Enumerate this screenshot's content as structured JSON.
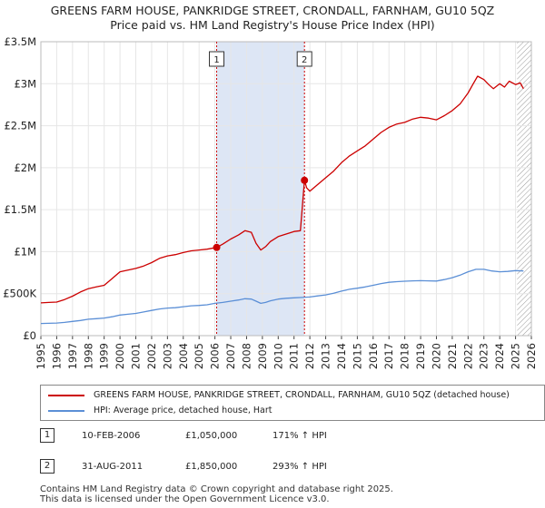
{
  "title": "GREENS FARM HOUSE, PANKRIDGE STREET, CRONDALL, FARNHAM, GU10 5QZ",
  "subtitle": "Price paid vs. HM Land Registry's House Price Index (HPI)",
  "colors": {
    "property": "#cc0000",
    "hpi": "#5b8fd6",
    "shade": "#dde6f5",
    "grid": "#e6e6e6"
  },
  "chart_data": {
    "type": "line",
    "title": "GREENS FARM HOUSE, PANKRIDGE STREET, CRONDALL, FARNHAM, GU10 5QZ",
    "subtitle": "Price paid vs. HM Land Registry's House Price Index (HPI)",
    "xlim": [
      1995,
      2026
    ],
    "ylim": [
      0,
      3500000
    ],
    "yticks": [
      0,
      500000,
      1000000,
      1500000,
      2000000,
      2500000,
      3000000,
      3500000
    ],
    "ytick_labels": [
      "£0",
      "£500K",
      "£1M",
      "£1.5M",
      "£2M",
      "£2.5M",
      "£3M",
      "£3.5M"
    ],
    "xticks": [
      "1995",
      "1996",
      "1997",
      "1998",
      "1999",
      "2000",
      "2001",
      "2002",
      "2003",
      "2004",
      "2005",
      "2006",
      "2007",
      "2008",
      "2009",
      "2010",
      "2011",
      "2012",
      "2013",
      "2014",
      "2015",
      "2016",
      "2017",
      "2018",
      "2019",
      "2020",
      "2021",
      "2022",
      "2023",
      "2024",
      "2025",
      "2026"
    ],
    "grid": true,
    "shaded_region": [
      2006.11,
      2011.66
    ],
    "hatched_after": 2025.1,
    "series": [
      {
        "name": "GREENS FARM HOUSE, PANKRIDGE STREET, CRONDALL, FARNHAM, GU10 5QZ (detached house)",
        "x": [
          1995,
          1995.5,
          1996,
          1996.5,
          1997,
          1997.5,
          1998,
          1998.5,
          1999,
          1999.5,
          2000,
          2000.5,
          2001,
          2001.5,
          2002,
          2002.5,
          2003,
          2003.5,
          2004,
          2004.5,
          2005,
          2005.5,
          2006.11,
          2006.5,
          2007,
          2007.5,
          2007.9,
          2008.3,
          2008.6,
          2008.9,
          2009.2,
          2009.5,
          2010,
          2010.5,
          2011,
          2011.4,
          2011.66,
          2011.8,
          2012,
          2012.5,
          2013,
          2013.5,
          2014,
          2014.5,
          2015,
          2015.5,
          2016,
          2016.5,
          2017,
          2017.5,
          2018,
          2018.5,
          2019,
          2019.5,
          2020,
          2020.5,
          2021,
          2021.5,
          2022,
          2022.3,
          2022.6,
          2023,
          2023.3,
          2023.6,
          2024,
          2024.3,
          2024.6,
          2025,
          2025.3,
          2025.5
        ],
        "values": [
          390000,
          395000,
          400000,
          430000,
          470000,
          520000,
          560000,
          580000,
          600000,
          680000,
          760000,
          780000,
          800000,
          830000,
          870000,
          920000,
          950000,
          965000,
          990000,
          1010000,
          1020000,
          1030000,
          1050000,
          1090000,
          1150000,
          1200000,
          1250000,
          1230000,
          1100000,
          1020000,
          1060000,
          1120000,
          1180000,
          1210000,
          1240000,
          1250000,
          1850000,
          1760000,
          1720000,
          1800000,
          1880000,
          1960000,
          2060000,
          2140000,
          2200000,
          2260000,
          2340000,
          2420000,
          2480000,
          2520000,
          2540000,
          2580000,
          2600000,
          2590000,
          2570000,
          2620000,
          2680000,
          2760000,
          2890000,
          2990000,
          3090000,
          3050000,
          2990000,
          2940000,
          3000000,
          2960000,
          3030000,
          2990000,
          3010000,
          2940000
        ]
      },
      {
        "name": "HPI: Average price, detached house, Hart",
        "x": [
          1995,
          1995.5,
          1996,
          1996.5,
          1997,
          1997.5,
          1998,
          1998.5,
          1999,
          1999.5,
          2000,
          2000.5,
          2001,
          2001.5,
          2002,
          2002.5,
          2003,
          2003.5,
          2004,
          2004.5,
          2005,
          2005.5,
          2006,
          2006.5,
          2007,
          2007.5,
          2007.9,
          2008.3,
          2008.6,
          2008.9,
          2009.2,
          2009.5,
          2010,
          2010.5,
          2011,
          2011.5,
          2012,
          2012.5,
          2013,
          2013.5,
          2014,
          2014.5,
          2015,
          2015.5,
          2016,
          2016.5,
          2017,
          2017.5,
          2018,
          2018.5,
          2019,
          2019.5,
          2020,
          2020.5,
          2021,
          2021.5,
          2022,
          2022.5,
          2023,
          2023.5,
          2024,
          2024.5,
          2025,
          2025.5
        ],
        "values": [
          145000,
          147000,
          150000,
          158000,
          170000,
          180000,
          195000,
          202000,
          210000,
          225000,
          245000,
          255000,
          265000,
          282000,
          300000,
          318000,
          328000,
          333000,
          345000,
          355000,
          360000,
          367000,
          385000,
          395000,
          410000,
          425000,
          440000,
          435000,
          410000,
          385000,
          395000,
          415000,
          435000,
          445000,
          450000,
          455000,
          460000,
          473000,
          485000,
          505000,
          530000,
          552000,
          565000,
          580000,
          600000,
          620000,
          635000,
          643000,
          648000,
          652000,
          655000,
          652000,
          650000,
          668000,
          690000,
          720000,
          760000,
          790000,
          790000,
          770000,
          760000,
          765000,
          775000,
          770000
        ]
      }
    ],
    "sales": [
      {
        "label": "1",
        "x": 2006.11,
        "y": 1050000
      },
      {
        "label": "2",
        "x": 2011.66,
        "y": 1850000
      }
    ]
  },
  "legend": {
    "items": [
      {
        "label": "GREENS FARM HOUSE, PANKRIDGE STREET, CRONDALL, FARNHAM, GU10 5QZ (detached house)"
      },
      {
        "label": "HPI: Average price, detached house, Hart"
      }
    ]
  },
  "transactions": [
    {
      "num": "1",
      "date": "10-FEB-2006",
      "price": "£1,050,000",
      "hpi": "171% ↑ HPI"
    },
    {
      "num": "2",
      "date": "31-AUG-2011",
      "price": "£1,850,000",
      "hpi": "293% ↑ HPI"
    }
  ],
  "footer": {
    "line1": "Contains HM Land Registry data © Crown copyright and database right 2025.",
    "line2": "This data is licensed under the Open Government Licence v3.0."
  }
}
